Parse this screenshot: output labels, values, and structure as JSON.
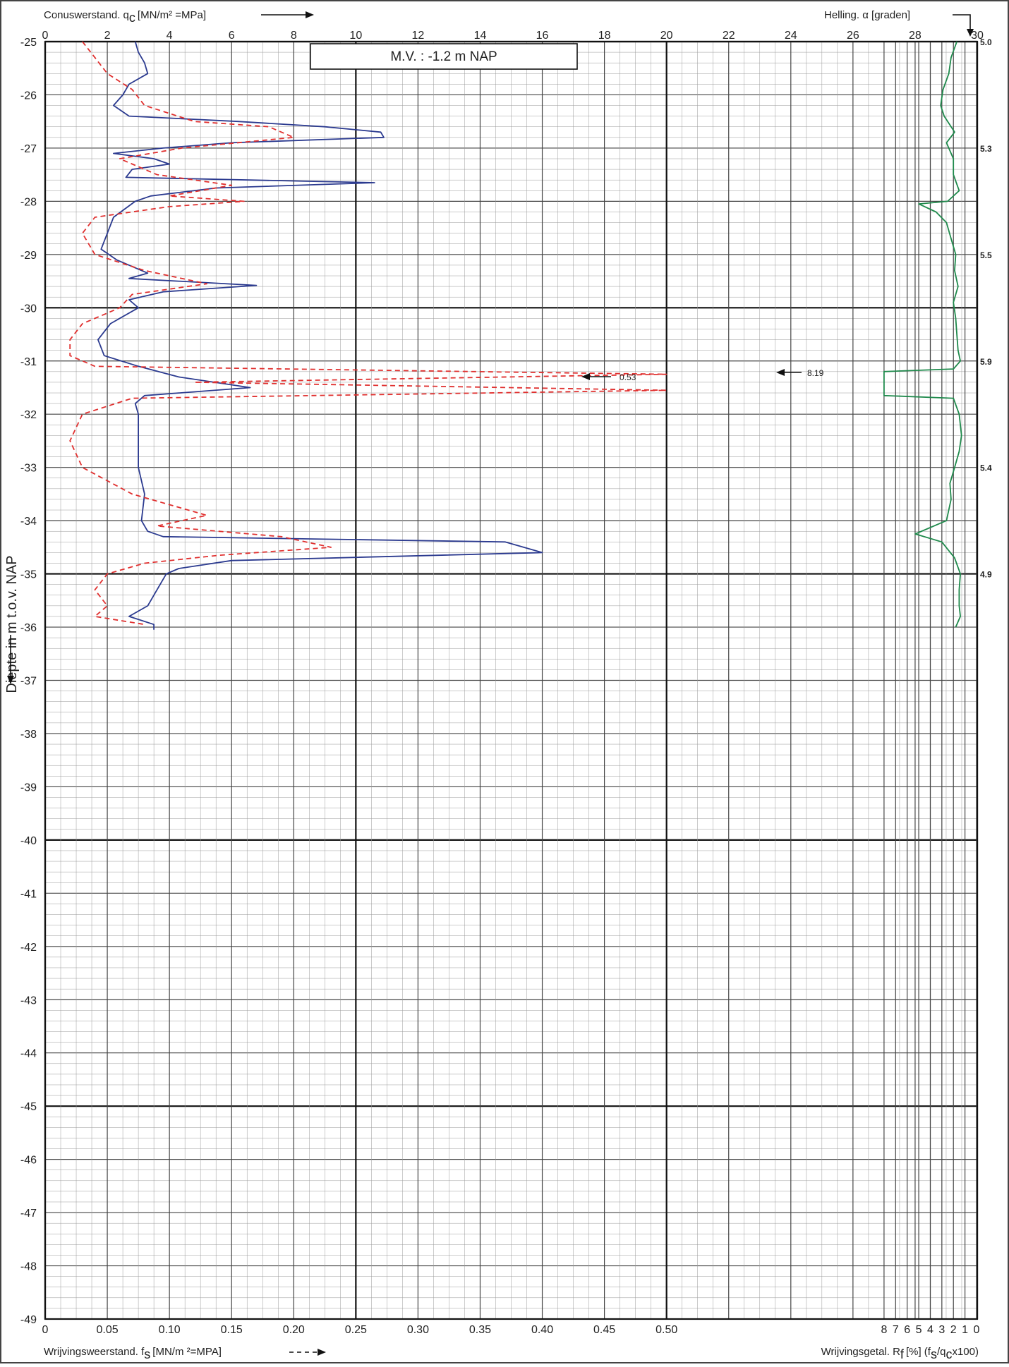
{
  "header": {
    "qc_label": "Conuswerstand. q",
    "qc_sub": "c",
    "qc_unit": "[MN/m² =MPa]",
    "helling_label": "Helling. α [graden]"
  },
  "footer": {
    "fs_label": "Wrijvingsweerstand. f",
    "fs_sub": "s",
    "fs_unit": "[MN/m ²=MPA]",
    "rf_label": "Wrijvingsgetal. R",
    "rf_sub": "f",
    "rf_unit": "[%]  (f",
    "rf_unit2": "/q",
    "rf_unit3": "x100)"
  },
  "mv_label": "M.V. :  -1.2      m   NAP",
  "y_axis_label": "Diepte in m t.o.v. NAP",
  "annotations": {
    "fs_clip": "0.53",
    "rf_clip": "8.19"
  },
  "chart_data": {
    "type": "line",
    "depth_range": [
      -25,
      -49
    ],
    "depth_ticks": [
      -25,
      -26,
      -27,
      -28,
      -29,
      -30,
      -31,
      -32,
      -33,
      -34,
      -35,
      -36,
      -37,
      -38,
      -39,
      -40,
      -41,
      -42,
      -43,
      -44,
      -45,
      -46,
      -47,
      -48,
      -49
    ],
    "qc_axis": {
      "range": [
        0,
        30
      ],
      "ticks": [
        0,
        2,
        4,
        6,
        8,
        10,
        12,
        14,
        16,
        18,
        20,
        22,
        24,
        26,
        28,
        30
      ]
    },
    "fs_axis": {
      "range": [
        0,
        0.5
      ],
      "ticks": [
        "0",
        "0.05",
        "0.10",
        "0.15",
        "0.20",
        "0.25",
        "0.30",
        "0.35",
        "0.40",
        "0.45",
        "0.50"
      ]
    },
    "rf_axis": {
      "range": [
        0,
        8
      ],
      "reversed": true,
      "ticks": [
        "8",
        "7",
        "6",
        "5",
        "4",
        "3",
        "2",
        "1",
        "0"
      ]
    },
    "helling_labels": [
      {
        "depth": -25.0,
        "text": "5.0"
      },
      {
        "depth": -27.0,
        "text": "5.3"
      },
      {
        "depth": -29.0,
        "text": "5.5"
      },
      {
        "depth": -31.0,
        "text": "5.9"
      },
      {
        "depth": -33.0,
        "text": "5.4"
      },
      {
        "depth": -35.0,
        "text": "4.9"
      }
    ],
    "series": [
      {
        "key": "qc",
        "color": "#2b3a8f",
        "dash": false,
        "points": [
          [
            -25.0,
            2.9
          ],
          [
            -25.2,
            3.0
          ],
          [
            -25.4,
            3.2
          ],
          [
            -25.6,
            3.3
          ],
          [
            -25.8,
            2.7
          ],
          [
            -26.0,
            2.5
          ],
          [
            -26.2,
            2.2
          ],
          [
            -26.4,
            2.7
          ],
          [
            -26.5,
            6.2
          ],
          [
            -26.6,
            9.0
          ],
          [
            -26.7,
            10.8
          ],
          [
            -26.8,
            10.9
          ],
          [
            -26.9,
            6.0
          ],
          [
            -27.0,
            3.8
          ],
          [
            -27.1,
            2.2
          ],
          [
            -27.2,
            3.5
          ],
          [
            -27.3,
            4.0
          ],
          [
            -27.4,
            2.8
          ],
          [
            -27.55,
            2.6
          ],
          [
            -27.65,
            10.6
          ],
          [
            -27.75,
            5.5
          ],
          [
            -27.9,
            3.4
          ],
          [
            -28.0,
            2.9
          ],
          [
            -28.3,
            2.2
          ],
          [
            -28.6,
            2.0
          ],
          [
            -28.9,
            1.8
          ],
          [
            -29.1,
            2.3
          ],
          [
            -29.25,
            2.9
          ],
          [
            -29.35,
            3.3
          ],
          [
            -29.45,
            2.7
          ],
          [
            -29.58,
            6.8
          ],
          [
            -29.7,
            3.8
          ],
          [
            -29.85,
            2.7
          ],
          [
            -30.0,
            3.0
          ],
          [
            -30.3,
            2.1
          ],
          [
            -30.6,
            1.7
          ],
          [
            -30.9,
            1.9
          ],
          [
            -31.1,
            3.0
          ],
          [
            -31.3,
            4.3
          ],
          [
            -31.5,
            6.6
          ],
          [
            -31.65,
            3.2
          ],
          [
            -31.8,
            2.9
          ],
          [
            -32.0,
            3.0
          ],
          [
            -32.5,
            3.0
          ],
          [
            -33.0,
            3.0
          ],
          [
            -33.5,
            3.2
          ],
          [
            -34.0,
            3.1
          ],
          [
            -34.2,
            3.3
          ],
          [
            -34.3,
            3.8
          ],
          [
            -34.4,
            14.8
          ],
          [
            -34.6,
            16.0
          ],
          [
            -34.75,
            6.0
          ],
          [
            -34.9,
            4.3
          ],
          [
            -35.0,
            3.9
          ],
          [
            -35.3,
            3.6
          ],
          [
            -35.6,
            3.3
          ],
          [
            -35.8,
            2.7
          ],
          [
            -35.95,
            3.5
          ],
          [
            -36.05,
            3.5
          ]
        ]
      },
      {
        "key": "fs",
        "color": "#e0302f",
        "dash": true,
        "points": [
          [
            -25.0,
            0.03
          ],
          [
            -25.3,
            0.04
          ],
          [
            -25.6,
            0.05
          ],
          [
            -25.9,
            0.07
          ],
          [
            -26.2,
            0.08
          ],
          [
            -26.5,
            0.12
          ],
          [
            -26.6,
            0.18
          ],
          [
            -26.8,
            0.2
          ],
          [
            -27.0,
            0.11
          ],
          [
            -27.2,
            0.06
          ],
          [
            -27.5,
            0.09
          ],
          [
            -27.7,
            0.15
          ],
          [
            -27.9,
            0.1
          ],
          [
            -28.0,
            0.16
          ],
          [
            -28.1,
            0.1
          ],
          [
            -28.3,
            0.04
          ],
          [
            -28.6,
            0.03
          ],
          [
            -29.0,
            0.04
          ],
          [
            -29.3,
            0.08
          ],
          [
            -29.55,
            0.13
          ],
          [
            -29.75,
            0.07
          ],
          [
            -30.0,
            0.06
          ],
          [
            -30.3,
            0.03
          ],
          [
            -30.6,
            0.02
          ],
          [
            -30.9,
            0.02
          ],
          [
            -31.1,
            0.04
          ],
          [
            -31.25,
            0.5
          ],
          [
            -31.4,
            0.12
          ],
          [
            -31.55,
            0.5
          ],
          [
            -31.7,
            0.07
          ],
          [
            -32.0,
            0.03
          ],
          [
            -32.5,
            0.02
          ],
          [
            -33.0,
            0.03
          ],
          [
            -33.5,
            0.07
          ],
          [
            -33.9,
            0.13
          ],
          [
            -34.1,
            0.09
          ],
          [
            -34.3,
            0.19
          ],
          [
            -34.5,
            0.23
          ],
          [
            -34.65,
            0.14
          ],
          [
            -34.8,
            0.08
          ],
          [
            -35.0,
            0.05
          ],
          [
            -35.3,
            0.04
          ],
          [
            -35.6,
            0.05
          ],
          [
            -35.8,
            0.04
          ],
          [
            -35.95,
            0.08
          ]
        ]
      },
      {
        "key": "rf",
        "color": "#1f8a4c",
        "dash": false,
        "points": [
          [
            -25.0,
            1.7
          ],
          [
            -25.3,
            2.2
          ],
          [
            -25.6,
            2.4
          ],
          [
            -25.9,
            2.9
          ],
          [
            -26.2,
            3.1
          ],
          [
            -26.4,
            2.8
          ],
          [
            -26.7,
            1.9
          ],
          [
            -26.9,
            2.6
          ],
          [
            -27.2,
            2.0
          ],
          [
            -27.5,
            2.0
          ],
          [
            -27.8,
            1.5
          ],
          [
            -28.0,
            2.5
          ],
          [
            -28.05,
            5.0
          ],
          [
            -28.2,
            3.5
          ],
          [
            -28.4,
            2.6
          ],
          [
            -28.7,
            2.2
          ],
          [
            -29.0,
            1.8
          ],
          [
            -29.3,
            1.9
          ],
          [
            -29.6,
            1.6
          ],
          [
            -29.9,
            2.0
          ],
          [
            -30.2,
            1.8
          ],
          [
            -30.5,
            1.7
          ],
          [
            -30.8,
            1.6
          ],
          [
            -31.0,
            1.4
          ],
          [
            -31.15,
            2.0
          ],
          [
            -31.2,
            8.0
          ],
          [
            -31.65,
            8.0
          ],
          [
            -31.7,
            2.0
          ],
          [
            -32.0,
            1.5
          ],
          [
            -32.4,
            1.3
          ],
          [
            -32.7,
            1.5
          ],
          [
            -33.0,
            1.9
          ],
          [
            -33.3,
            2.3
          ],
          [
            -33.6,
            2.2
          ],
          [
            -34.0,
            2.6
          ],
          [
            -34.25,
            5.3
          ],
          [
            -34.4,
            3.0
          ],
          [
            -34.7,
            1.9
          ],
          [
            -35.0,
            1.4
          ],
          [
            -35.3,
            1.5
          ],
          [
            -35.6,
            1.5
          ],
          [
            -35.8,
            1.4
          ],
          [
            -36.0,
            1.8
          ]
        ]
      }
    ]
  }
}
